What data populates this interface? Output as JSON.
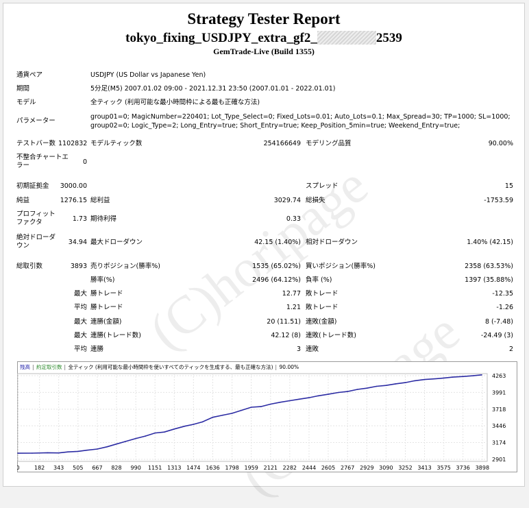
{
  "report": {
    "title": "Strategy Tester Report",
    "ea_name_prefix": "tokyo_fixing_USDJPY_extra_gf2_",
    "ea_name_suffix": "2539",
    "server": "GemTrade-Live (Build 1355)"
  },
  "info": {
    "symbol_label": "通貨ペア",
    "symbol_value": "USDJPY (US Dollar vs Japanese Yen)",
    "period_label": "期間",
    "period_value": "5分足(M5) 2007.01.02 09:00 - 2021.12.31 23:50 (2007.01.01 - 2022.01.01)",
    "model_label": "モデル",
    "model_value": "全ティック (利用可能な最小時間枠による最も正確な方法)",
    "params_label": "パラメーター",
    "params_line1": "group01=0; MagicNumber=220401; Lot_Type_Select=0; Fixed_Lots=0.01; Auto_Lots=0.1; Max_Spread=30; TP=1000; SL=1000;",
    "params_line2": "group02=0; Logic_Type=2; Long_Entry=true; Short_Entry=true; Keep_Position_5min=true; Weekend_Entry=true;"
  },
  "stats": {
    "bars_label": "テストバー数",
    "bars_value": "1102832",
    "ticks_label": "モデルティック数",
    "ticks_value": "254166649",
    "quality_label": "モデリング品質",
    "quality_value": "90.00%",
    "mismatch_label": "不整合チャートエラー",
    "mismatch_value": "0",
    "deposit_label": "初期証拠金",
    "deposit_value": "3000.00",
    "spread_label": "スプレッド",
    "spread_value": "15",
    "net_label": "純益",
    "net_value": "1276.15",
    "gross_profit_label": "総利益",
    "gross_profit_value": "3029.74",
    "gross_loss_label": "総損失",
    "gross_loss_value": "-1753.59",
    "pf_label": "プロフィットファクタ",
    "pf_value": "1.73",
    "expected_label": "期待利得",
    "expected_value": "0.33",
    "abs_dd_label": "絶対ドローダウン",
    "abs_dd_value": "34.94",
    "max_dd_label": "最大ドローダウン",
    "max_dd_value": "42.15 (1.40%)",
    "rel_dd_label": "相対ドローダウン",
    "rel_dd_value": "1.40% (42.15)",
    "trades_label": "総取引数",
    "trades_value": "3893",
    "short_label": "売りポジション(勝率%)",
    "short_value": "1535 (65.02%)",
    "long_label": "買いポジション(勝率%)",
    "long_value": "2358 (63.53%)",
    "win_label": "勝率(%)",
    "win_value": "2496 (64.12%)",
    "loss_label": "負率 (%)",
    "loss_value": "1397 (35.88%)",
    "max_word": "最大",
    "avg_word": "平均",
    "best_label": "勝トレード",
    "best_value": "12.77",
    "worst_label": "敗トレード",
    "worst_value": "-12.35",
    "avg_win_label": "勝トレード",
    "avg_win_value": "1.21",
    "avg_loss_label": "敗トレード",
    "avg_loss_value": "-1.26",
    "cons_win_label": "連勝(金額)",
    "cons_win_value": "20 (11.51)",
    "cons_loss_label": "連敗(金額)",
    "cons_loss_value": "8 (-7.48)",
    "cons_profit_label": "連勝(トレード数)",
    "cons_profit_value": "42.12 (8)",
    "cons_lossamt_label": "連敗(トレード数)",
    "cons_lossamt_value": "-24.49 (3)",
    "avg_cons_win_label": "連勝",
    "avg_cons_win_value": "3",
    "avg_cons_loss_label": "連敗",
    "avg_cons_loss_value": "2"
  },
  "watermark": "(C)horipage",
  "chart_data": {
    "type": "line",
    "legend": [
      "残高",
      "約定取引数",
      "全ティック (利用可能な最小時間枠を使いすべてのティックを生成する、最も正確な方法)",
      "90.00%"
    ],
    "legend_colors": [
      "#1a1aa8",
      "#2e8b2e",
      "#000000",
      "#000000"
    ],
    "line_color": "#2b2ba3",
    "x_ticks": [
      "0",
      "182",
      "343",
      "505",
      "667",
      "828",
      "990",
      "1151",
      "1313",
      "1474",
      "1636",
      "1798",
      "1959",
      "2121",
      "2282",
      "2444",
      "2605",
      "2767",
      "2929",
      "3090",
      "3252",
      "3413",
      "3575",
      "3736",
      "3898"
    ],
    "y_ticks": [
      "4263",
      "3991",
      "3718",
      "3446",
      "3174",
      "2901"
    ],
    "xlim": [
      0,
      3893
    ],
    "ylim": [
      2901,
      4263
    ],
    "x": [
      0,
      120,
      250,
      343,
      420,
      505,
      580,
      667,
      750,
      828,
      900,
      990,
      1070,
      1151,
      1230,
      1313,
      1400,
      1474,
      1550,
      1636,
      1720,
      1798,
      1880,
      1959,
      2040,
      2121,
      2200,
      2282,
      2360,
      2444,
      2520,
      2605,
      2690,
      2767,
      2850,
      2929,
      3010,
      3090,
      3170,
      3252,
      3330,
      3413,
      3490,
      3575,
      3650,
      3736,
      3820,
      3893
    ],
    "y": [
      3000,
      3002,
      3008,
      3005,
      3022,
      3030,
      3050,
      3068,
      3105,
      3150,
      3190,
      3240,
      3280,
      3330,
      3345,
      3395,
      3440,
      3470,
      3510,
      3585,
      3620,
      3650,
      3700,
      3750,
      3760,
      3800,
      3830,
      3855,
      3880,
      3905,
      3935,
      3960,
      3990,
      4005,
      4040,
      4060,
      4090,
      4105,
      4130,
      4150,
      4180,
      4200,
      4210,
      4225,
      4240,
      4250,
      4262,
      4276
    ]
  }
}
